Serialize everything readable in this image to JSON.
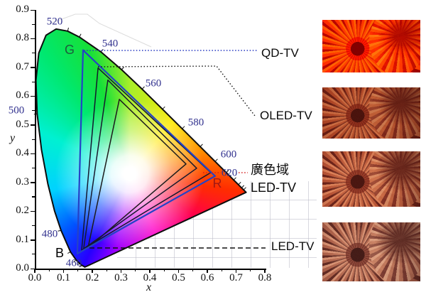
{
  "figure": {
    "y_axis": {
      "label": "y",
      "ticks": [
        "0.0",
        "0.1",
        "0.2",
        "0.3",
        "0.4",
        "0.5",
        "0.6",
        "0.7",
        "0.8",
        "0.9"
      ]
    },
    "x_axis": {
      "label": "x",
      "ticks": [
        "0.0",
        "0.1",
        "0.2",
        "0.3",
        "0.4",
        "0.5",
        "0.6",
        "0.7",
        "0.8"
      ]
    },
    "wavelengths": {
      "w460": "460",
      "w480": "480",
      "w500": "500",
      "w520": "520",
      "w540": "540",
      "w560": "560",
      "w580": "580",
      "w600": "600",
      "w620": "620"
    },
    "primaries": {
      "G": "G",
      "B": "B",
      "R": "R"
    },
    "callouts": {
      "qd": "QD-TV",
      "oled": "OLED-TV",
      "wcg_line1": "廣色域",
      "wcg_line2": "LED-TV",
      "led": "LED-TV"
    },
    "colors": {
      "wavelength_label": "#31318e",
      "qd_leader": "#2336c0",
      "red_leader": "#d42020",
      "primary_G": "#1d5c3c",
      "primary_B": "#000000",
      "primary_R": "#a01815"
    }
  },
  "chart_data": {
    "type": "scatter",
    "description": "CIE 1931 xy chromaticity horseshoe with nested RGB gamut triangles of four TV types",
    "xlabel": "x",
    "ylabel": "y",
    "xlim": [
      0,
      0.8
    ],
    "ylim": [
      0,
      0.9
    ],
    "grid": true,
    "legend_position": "right",
    "spectral_locus_labels_nm": [
      460,
      480,
      500,
      520,
      540,
      560,
      580,
      600,
      620
    ],
    "series": [
      {
        "name": "QD-TV",
        "color": "#2443c6",
        "points": [
          [
            0.168,
            0.76
          ],
          [
            0.148,
            0.052
          ],
          [
            0.627,
            0.322
          ]
        ]
      },
      {
        "name": "OLED-TV",
        "color": "#13182e",
        "points": [
          [
            0.22,
            0.698
          ],
          [
            0.163,
            0.064
          ],
          [
            0.612,
            0.334
          ]
        ]
      },
      {
        "name": "廣色域 LED-TV",
        "color": "#181a2e",
        "points": [
          [
            0.254,
            0.656
          ],
          [
            0.17,
            0.069
          ],
          [
            0.563,
            0.349
          ]
        ]
      },
      {
        "name": "LED-TV",
        "color": "#1c1c1c",
        "points": [
          [
            0.294,
            0.589
          ],
          [
            0.185,
            0.072
          ],
          [
            0.526,
            0.364
          ]
        ]
      }
    ]
  },
  "images": [
    {
      "name": "flower-qd-tv",
      "gamut": "QD-TV",
      "appearance": "vivid saturated red-orange chrysanthemum"
    },
    {
      "name": "flower-oled-tv",
      "gamut": "OLED-TV",
      "appearance": "muted brick-red chrysanthemum"
    },
    {
      "name": "flower-wcg-led",
      "gamut": "廣色域 LED-TV",
      "appearance": "softer orange-pink chrysanthemum"
    },
    {
      "name": "flower-led-tv",
      "gamut": "LED-TV",
      "appearance": "pale washed-out salmon chrysanthemum"
    }
  ]
}
